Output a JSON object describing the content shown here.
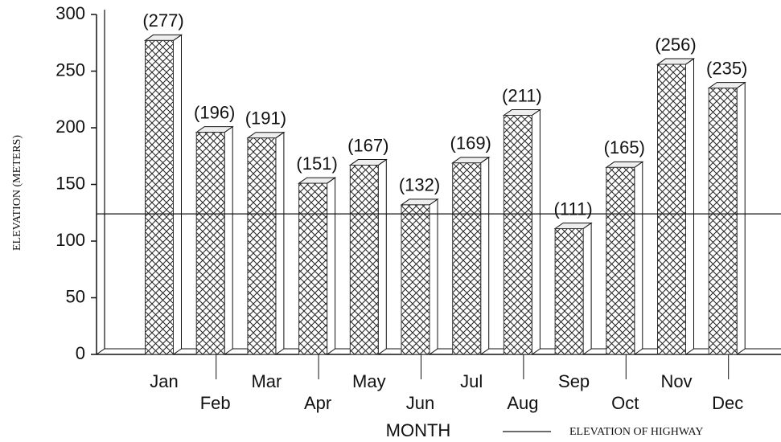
{
  "chart_data": {
    "type": "bar",
    "categories": [
      "Jan",
      "Feb",
      "Mar",
      "Apr",
      "May",
      "Jun",
      "Jul",
      "Aug",
      "Sep",
      "Oct",
      "Nov",
      "Dec"
    ],
    "values": [
      277,
      196,
      191,
      151,
      167,
      132,
      169,
      211,
      111,
      165,
      256,
      235
    ],
    "value_labels": [
      "(277)",
      "(196)",
      "(191)",
      "(151)",
      "(167)",
      "(132)",
      "(169)",
      "(211)",
      "(111)",
      "(165)",
      "(256)",
      "(235)"
    ],
    "color": "#333333",
    "ylim": [
      0,
      300
    ],
    "yticks": [
      0,
      50,
      100,
      150,
      200,
      250,
      300
    ],
    "y_label": "ELEVATION (METERS)",
    "x_label": "MONTH",
    "reference_line": {
      "value": 124,
      "label": "ELEVATION OF HIGHWAY"
    }
  }
}
